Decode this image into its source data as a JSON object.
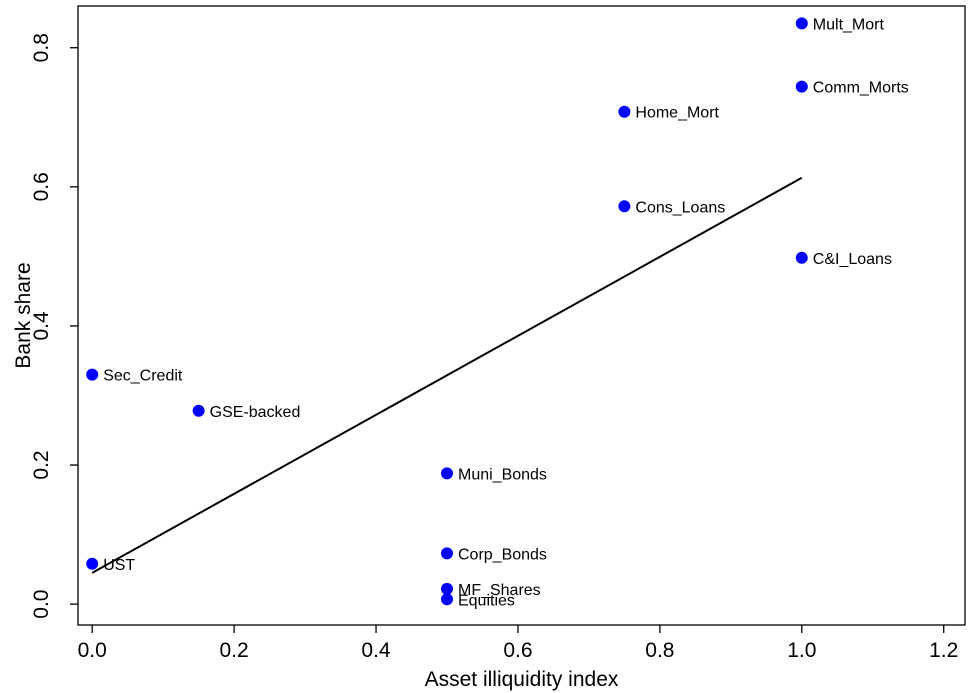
{
  "chart_data": {
    "type": "scatter",
    "xlabel": "Asset illiquidity index",
    "ylabel": "Bank share",
    "xlim": [
      -0.02,
      1.23
    ],
    "ylim": [
      -0.03,
      0.86
    ],
    "xticks": [
      "0.0",
      "0.2",
      "0.4",
      "0.6",
      "0.8",
      "1.0",
      "1.2"
    ],
    "yticks": [
      "0.0",
      "0.2",
      "0.4",
      "0.6",
      "0.8"
    ],
    "grid": false,
    "point_color": "#0000ff",
    "points": [
      {
        "label": "Mult_Mort",
        "x": 1.0,
        "y": 0.835
      },
      {
        "label": "Comm_Morts",
        "x": 1.0,
        "y": 0.744
      },
      {
        "label": "Home_Mort",
        "x": 0.75,
        "y": 0.708
      },
      {
        "label": "Cons_Loans",
        "x": 0.75,
        "y": 0.572
      },
      {
        "label": "C&I_Loans",
        "x": 1.0,
        "y": 0.498
      },
      {
        "label": "Sec_Credit",
        "x": 0.0,
        "y": 0.33
      },
      {
        "label": "GSE-backed",
        "x": 0.15,
        "y": 0.278
      },
      {
        "label": "Muni_Bonds",
        "x": 0.5,
        "y": 0.188
      },
      {
        "label": "Corp_Bonds",
        "x": 0.5,
        "y": 0.073
      },
      {
        "label": "UST",
        "x": 0.0,
        "y": 0.058
      },
      {
        "label": "MF_Shares",
        "x": 0.5,
        "y": 0.022
      },
      {
        "label": "Equities",
        "x": 0.5,
        "y": 0.007
      }
    ],
    "fit_line": {
      "x": [
        0.0,
        1.0
      ],
      "y": [
        0.045,
        0.613
      ],
      "color": "#000000"
    }
  }
}
